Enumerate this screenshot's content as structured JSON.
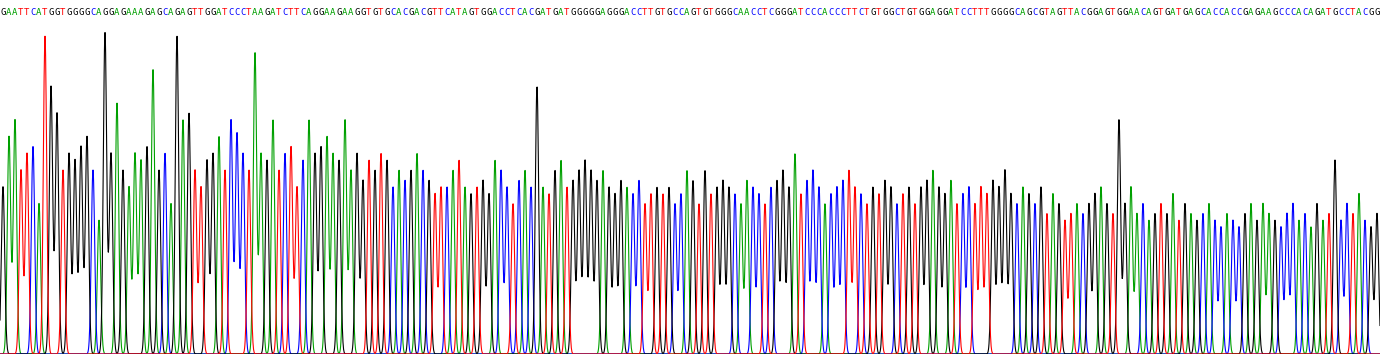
{
  "chart_data": {
    "type": "chromatogram",
    "sequence": "GAATTCATGGTGGGGCAGGAGAAAGAGCAGAGTTGGATCCCTAAGATCTTCAGGAAGAAGGTGTGCACGACGTTCATAGTGGACCTCACGATGATGGGGGAGGGACCTTGTGCCAGTGTGGGCAACCTCGGGATCCCACCCTTCTGTGGCTGTGGAGGATCCTTTGGGGCAGCGTAGTTACGGAGTGGAACAGTGATGAGCACCACCGAGAAGCCCACAGATGCCTACGG",
    "base_colors": {
      "A": "#00a000",
      "C": "#0000ff",
      "G": "#000000",
      "T": "#ff0000"
    },
    "peak_heights": [
      50,
      65,
      70,
      55,
      60,
      62,
      45,
      95,
      80,
      72,
      55,
      60,
      58,
      62,
      65,
      55,
      40,
      96,
      60,
      75,
      55,
      50,
      60,
      58,
      62,
      85,
      55,
      60,
      45,
      95,
      70,
      72,
      55,
      50,
      58,
      60,
      65,
      55,
      70,
      66,
      60,
      55,
      90,
      60,
      58,
      70,
      55,
      60,
      62,
      50,
      58,
      70,
      60,
      62,
      65,
      60,
      58,
      70,
      55,
      60,
      52,
      58,
      55,
      60,
      58,
      50,
      55,
      52,
      55,
      60,
      55,
      52,
      48,
      50,
      50,
      55,
      58,
      50,
      48,
      50,
      52,
      48,
      58,
      55,
      50,
      45,
      52,
      55,
      50,
      80,
      50,
      48,
      55,
      58,
      50,
      52,
      55,
      58,
      55,
      52,
      55,
      50,
      48,
      52,
      50,
      48,
      52,
      45,
      48,
      50,
      48,
      50,
      45,
      48,
      55,
      52,
      45,
      55,
      48,
      50,
      52,
      50,
      48,
      45,
      52,
      50,
      48,
      45,
      50,
      52,
      55,
      50,
      60,
      48,
      52,
      55,
      50,
      45,
      48,
      50,
      52,
      55,
      50,
      48,
      45,
      50,
      48,
      52,
      50,
      45,
      48,
      50,
      45,
      50,
      52,
      55,
      50,
      48,
      52,
      45,
      48,
      50,
      45,
      50,
      48,
      52,
      50,
      55,
      48,
      45,
      50,
      48,
      45,
      50,
      42,
      48,
      45,
      40,
      42,
      45,
      42,
      45,
      48,
      50,
      45,
      42,
      70,
      45,
      50,
      42,
      45,
      40,
      42,
      45,
      42,
      48,
      40,
      45,
      42,
      40,
      42,
      45,
      40,
      38,
      42,
      40,
      38,
      42,
      45,
      40,
      45,
      42,
      40,
      38,
      42,
      45,
      40,
      42,
      38,
      45,
      40,
      42,
      58,
      40,
      45,
      42,
      48,
      40,
      38,
      42
    ],
    "ylim": [
      0,
      100
    ],
    "tick_labels": false
  }
}
